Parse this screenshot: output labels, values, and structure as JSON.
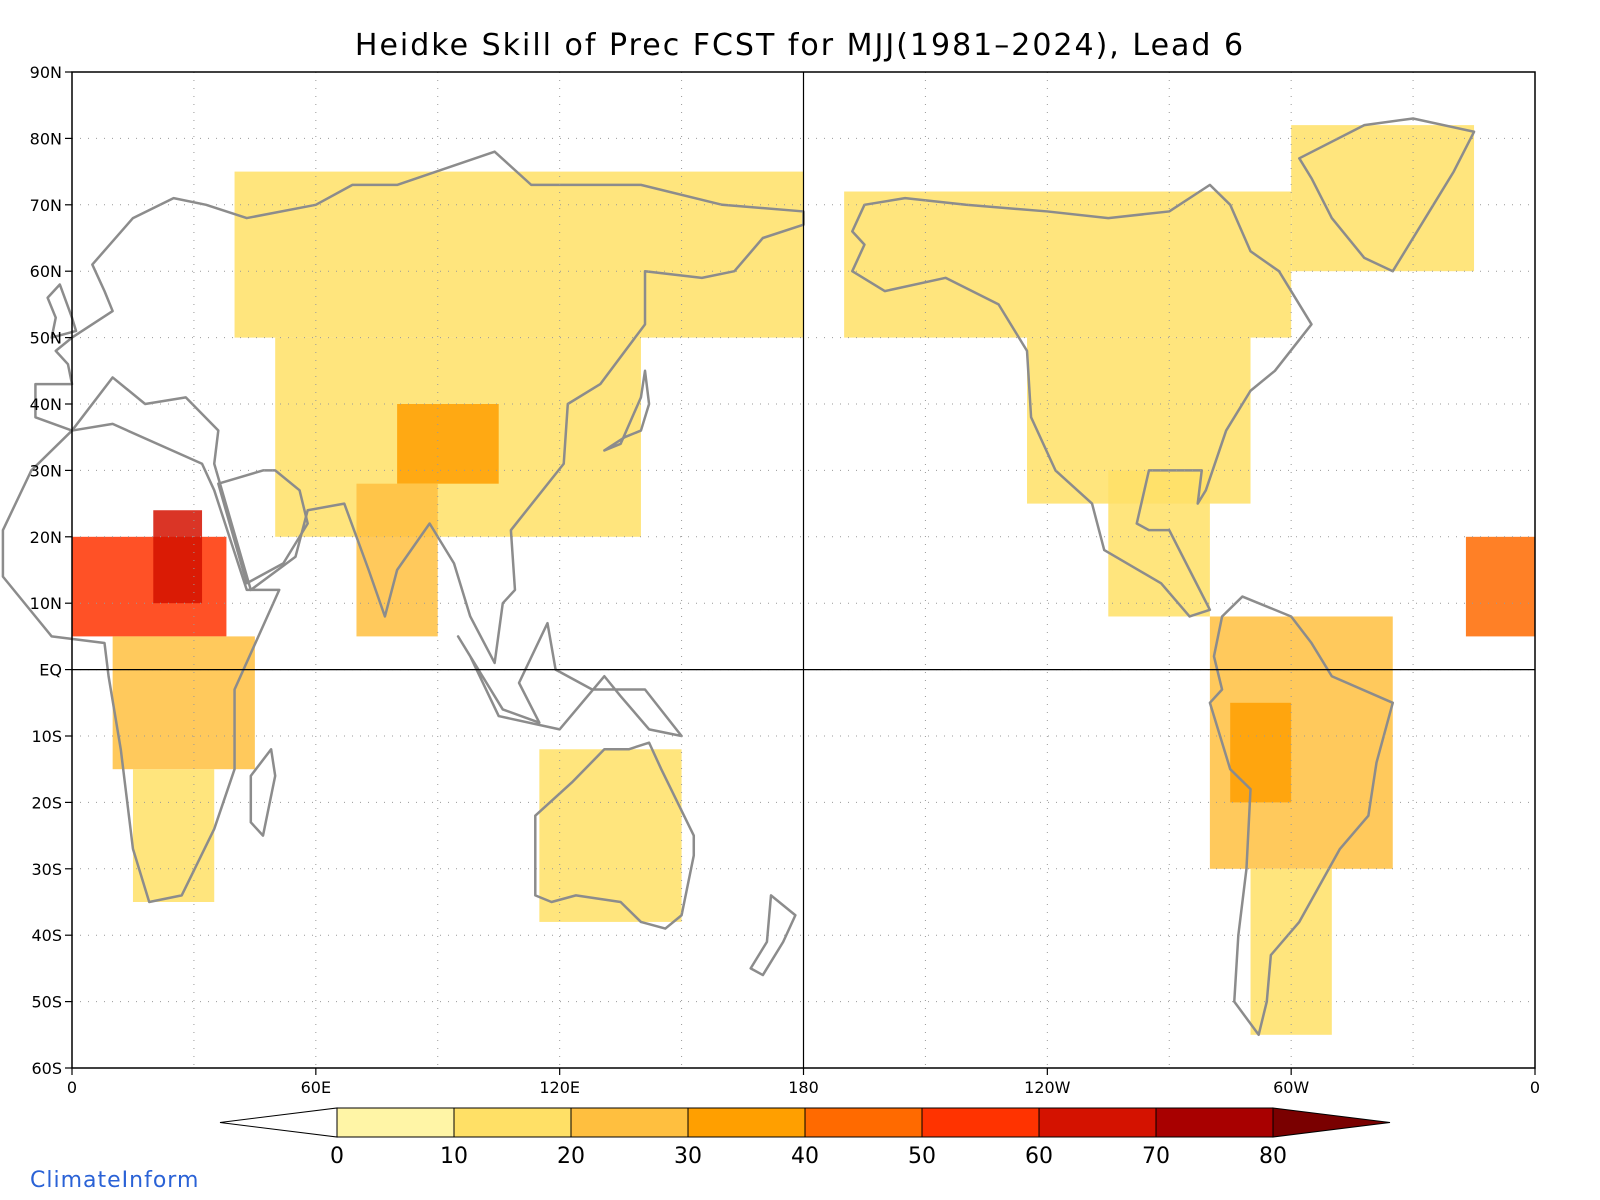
{
  "title": "Heidke Skill of Prec FCST for MJJ(1981–2024), Lead 6",
  "credit": {
    "text": "ClimateInform",
    "color": "#2a62d6"
  },
  "map": {
    "projection": "cylindrical-equidistant",
    "lon_range": [
      0,
      360
    ],
    "lat_range": [
      -60,
      90
    ],
    "grid": "dotted",
    "coastline_color": "#8c8c8c",
    "state_border_color": "#000000",
    "lat_labels": [
      "90N",
      "80N",
      "70N",
      "60N",
      "50N",
      "40N",
      "30N",
      "20N",
      "10N",
      "EQ",
      "10S",
      "20S",
      "30S",
      "40S",
      "50S",
      "60S"
    ],
    "lat_values": [
      90,
      80,
      70,
      60,
      50,
      40,
      30,
      20,
      10,
      0,
      -10,
      -20,
      -30,
      -40,
      -50,
      -60
    ],
    "lon_labels": [
      "0",
      "60E",
      "120E",
      "180",
      "120W",
      "60W",
      "0"
    ],
    "lon_values": [
      0,
      60,
      120,
      180,
      240,
      300,
      360
    ],
    "reference_lines": {
      "equator": 0,
      "dateline": 180
    }
  },
  "colorbar": {
    "ticks": [
      "0",
      "10",
      "20",
      "30",
      "40",
      "50",
      "60",
      "70",
      "80"
    ],
    "colors": [
      "#ffffff",
      "#fff5a6",
      "#ffe066",
      "#ffbf3f",
      "#ff9f00",
      "#ff6a00",
      "#ff3300",
      "#d41200",
      "#a80000",
      "#7a0000"
    ],
    "extend": "both"
  },
  "chart_data": {
    "type": "heatmap",
    "title": "Heidke Skill of Prec FCST for MJJ(1981–2024), Lead 6",
    "variable": "Heidke Skill Score",
    "levels": [
      0,
      10,
      20,
      30,
      40,
      50,
      60,
      70,
      80
    ],
    "regions": [
      {
        "lon": [
          0,
          38
        ],
        "lat": [
          5,
          20
        ],
        "level": 6
      },
      {
        "lon": [
          20,
          32
        ],
        "lat": [
          10,
          24
        ],
        "level": 7
      },
      {
        "lon": [
          10,
          45
        ],
        "lat": [
          -15,
          5
        ],
        "level": 3
      },
      {
        "lon": [
          15,
          35
        ],
        "lat": [
          -35,
          -15
        ],
        "level": 2
      },
      {
        "lon": [
          40,
          180
        ],
        "lat": [
          50,
          75
        ],
        "level": 2
      },
      {
        "lon": [
          50,
          140
        ],
        "lat": [
          20,
          50
        ],
        "level": 2
      },
      {
        "lon": [
          80,
          105
        ],
        "lat": [
          28,
          40
        ],
        "level": 4
      },
      {
        "lon": [
          70,
          90
        ],
        "lat": [
          5,
          28
        ],
        "level": 3
      },
      {
        "lon": [
          115,
          150
        ],
        "lat": [
          -38,
          -12
        ],
        "level": 2
      },
      {
        "lon": [
          190,
          300
        ],
        "lat": [
          50,
          72
        ],
        "level": 2
      },
      {
        "lon": [
          235,
          290
        ],
        "lat": [
          25,
          50
        ],
        "level": 2
      },
      {
        "lon": [
          255,
          280
        ],
        "lat": [
          8,
          30
        ],
        "level": 2
      },
      {
        "lon": [
          280,
          325
        ],
        "lat": [
          -30,
          8
        ],
        "level": 3
      },
      {
        "lon": [
          285,
          300
        ],
        "lat": [
          -20,
          -5
        ],
        "level": 4
      },
      {
        "lon": [
          290,
          310
        ],
        "lat": [
          -55,
          -30
        ],
        "level": 2
      },
      {
        "lon": [
          300,
          345
        ],
        "lat": [
          60,
          82
        ],
        "level": 2
      },
      {
        "lon": [
          343,
          360
        ],
        "lat": [
          5,
          20
        ],
        "level": 5
      }
    ]
  }
}
